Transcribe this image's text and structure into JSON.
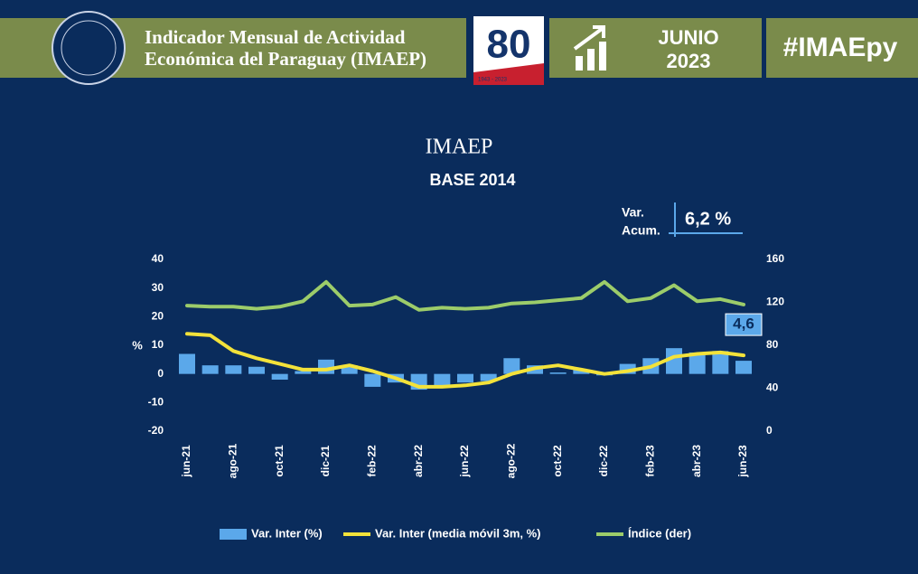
{
  "header": {
    "title_line1": "Indicador Mensual de Actividad",
    "title_line2": "Económica del Paraguay (IMAEP)",
    "logo_number": "80",
    "logo_years": "1943 - 2023",
    "month": "JUNIO",
    "year": "2023",
    "hashtag": "#IMAEpy"
  },
  "chart_data": {
    "type": "bar",
    "title": "IMAEP",
    "subtitle": "BASE 2014",
    "annotation": {
      "line1": "Var.",
      "line2": "Acum.",
      "value_text": "6,2 %"
    },
    "y_label": "%",
    "categories": [
      "jun-21",
      null,
      "ago-21",
      null,
      "oct-21",
      null,
      "dic-21",
      null,
      "feb-22",
      null,
      "abr-22",
      null,
      "jun-22",
      null,
      "ago-22",
      null,
      "oct-22",
      null,
      "dic-22",
      null,
      "feb-23",
      null,
      "abr-23",
      null,
      "jun-23"
    ],
    "series": [
      {
        "name": "Var. Inter (%)",
        "type": "bar",
        "color": "#5ba8ea",
        "values": [
          7,
          3,
          3,
          2.5,
          -2,
          1,
          5,
          3,
          -4.5,
          -3,
          -5.5,
          -4.5,
          -3,
          -2.5,
          5.5,
          3,
          0.5,
          1.5,
          -0.5,
          3.5,
          5.5,
          9,
          7.5,
          8,
          4.6
        ],
        "value_labels": [
          null,
          null,
          null,
          null,
          null,
          null,
          null,
          null,
          null,
          null,
          null,
          null,
          null,
          null,
          null,
          null,
          null,
          null,
          null,
          null,
          null,
          null,
          null,
          null,
          "4,6"
        ]
      },
      {
        "name": "Var. Inter (media móvil 3m, %)",
        "type": "line",
        "color": "#f3e23a",
        "values": [
          14,
          13.5,
          8,
          5.5,
          3.5,
          1.5,
          1.5,
          3,
          1,
          -1.5,
          -4.5,
          -4.5,
          -4,
          -3,
          0,
          2,
          3,
          1.5,
          0,
          1,
          2.5,
          6,
          7,
          7.5,
          6.5
        ]
      },
      {
        "name": "Índice (der)",
        "type": "line",
        "axis": "y2",
        "color": "#9ccc6a",
        "values": [
          117,
          116,
          116,
          114,
          116,
          121,
          139,
          117,
          118,
          125,
          113,
          115,
          114,
          115,
          119,
          120,
          122,
          124,
          139,
          121,
          124,
          136,
          121,
          123,
          118
        ]
      }
    ],
    "ylim": [
      -20,
      40
    ],
    "yticks": [
      -20,
      -10,
      0,
      10,
      20,
      30,
      40
    ],
    "y2lim": [
      0,
      160
    ],
    "y2ticks": [
      0,
      40,
      80,
      120,
      160
    ],
    "grid": false
  }
}
